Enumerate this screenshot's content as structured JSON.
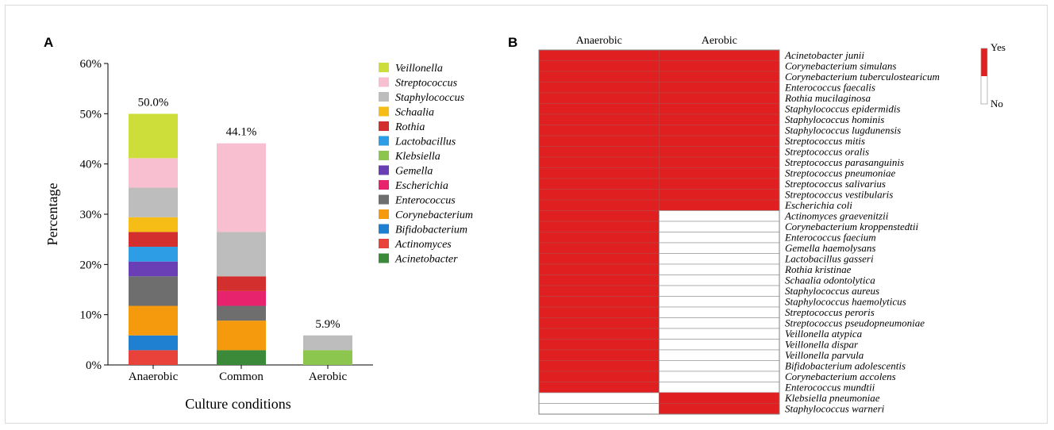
{
  "panel_a_label": "A",
  "panel_b_label": "B",
  "chart_data": [
    {
      "type": "bar",
      "stacked": true,
      "xlabel": "Culture conditions",
      "ylabel": "Percentage",
      "ylim": [
        0,
        60
      ],
      "yticks": [
        "0%",
        "10%",
        "20%",
        "30%",
        "40%",
        "50%",
        "60%"
      ],
      "categories": [
        "Anaerobic",
        "Common",
        "Aerobic"
      ],
      "totals": [
        "50.0%",
        "44.1%",
        "5.9%"
      ],
      "legend_position": "right",
      "series": [
        {
          "name": "Acinetobacter",
          "color": "#3a8a3a",
          "values": [
            0,
            2.94,
            0
          ]
        },
        {
          "name": "Actinomyces",
          "color": "#e8423a",
          "values": [
            2.94,
            0,
            0
          ]
        },
        {
          "name": "Bifidobacterium",
          "color": "#1f7fd0",
          "values": [
            2.94,
            0,
            0
          ]
        },
        {
          "name": "Corynebacterium",
          "color": "#f59a0c",
          "values": [
            5.88,
            5.88,
            0
          ]
        },
        {
          "name": "Enterococcus",
          "color": "#6e6e6e",
          "values": [
            5.88,
            2.94,
            0
          ]
        },
        {
          "name": "Escherichia",
          "color": "#e8236e",
          "values": [
            0,
            2.94,
            0
          ]
        },
        {
          "name": "Gemella",
          "color": "#6a3fb5",
          "values": [
            2.94,
            0,
            0
          ]
        },
        {
          "name": "Klebsiella",
          "color": "#8dc64f",
          "values": [
            0,
            0,
            2.94
          ]
        },
        {
          "name": "Lactobacillus",
          "color": "#2d9ee6",
          "values": [
            2.94,
            0,
            0
          ]
        },
        {
          "name": "Rothia",
          "color": "#d32f2f",
          "values": [
            2.94,
            2.94,
            0
          ]
        },
        {
          "name": "Schaalia",
          "color": "#f6bd16",
          "values": [
            2.94,
            0,
            0
          ]
        },
        {
          "name": "Staphylococcus",
          "color": "#bdbdbd",
          "values": [
            5.88,
            8.82,
            2.94
          ]
        },
        {
          "name": "Streptococcus",
          "color": "#f7bfd0",
          "values": [
            5.88,
            17.65,
            0
          ]
        },
        {
          "name": "Veillonella",
          "color": "#cdde3a",
          "values": [
            8.82,
            0,
            0
          ]
        }
      ]
    },
    {
      "type": "heatmap",
      "columns": [
        "Anaerobic",
        "Aerobic"
      ],
      "legend": {
        "high": "Yes",
        "low": "No",
        "yes_color": "#e02020",
        "no_color": "#ffffff"
      },
      "rows": [
        {
          "name": "Acinetobacter junii",
          "values": [
            1,
            1
          ]
        },
        {
          "name": "Corynebacterium simulans",
          "values": [
            1,
            1
          ]
        },
        {
          "name": "Corynebacterium tuberculostearicum",
          "values": [
            1,
            1
          ]
        },
        {
          "name": "Enterococcus faecalis",
          "values": [
            1,
            1
          ]
        },
        {
          "name": "Rothia mucilaginosa",
          "values": [
            1,
            1
          ]
        },
        {
          "name": "Staphylococcus epidermidis",
          "values": [
            1,
            1
          ]
        },
        {
          "name": "Staphylococcus hominis",
          "values": [
            1,
            1
          ]
        },
        {
          "name": "Staphylococcus lugdunensis",
          "values": [
            1,
            1
          ]
        },
        {
          "name": "Streptococcus mitis",
          "values": [
            1,
            1
          ]
        },
        {
          "name": "Streptococcus oralis",
          "values": [
            1,
            1
          ]
        },
        {
          "name": "Streptococcus parasanguinis",
          "values": [
            1,
            1
          ]
        },
        {
          "name": "Streptococcus pneumoniae",
          "values": [
            1,
            1
          ]
        },
        {
          "name": "Streptococcus salivarius",
          "values": [
            1,
            1
          ]
        },
        {
          "name": "Streptococcus vestibularis",
          "values": [
            1,
            1
          ]
        },
        {
          "name": "Escherichia coli",
          "values": [
            1,
            1
          ]
        },
        {
          "name": "Actinomyces graevenitzii",
          "values": [
            1,
            0
          ]
        },
        {
          "name": "Corynebacterium kroppenstedtii",
          "values": [
            1,
            0
          ]
        },
        {
          "name": "Enterococcus faecium",
          "values": [
            1,
            0
          ]
        },
        {
          "name": "Gemella haemolysans",
          "values": [
            1,
            0
          ]
        },
        {
          "name": "Lactobacillus gasseri",
          "values": [
            1,
            0
          ]
        },
        {
          "name": "Rothia kristinae",
          "values": [
            1,
            0
          ]
        },
        {
          "name": "Schaalia odontolytica",
          "values": [
            1,
            0
          ]
        },
        {
          "name": "Staphylococcus aureus",
          "values": [
            1,
            0
          ]
        },
        {
          "name": "Staphylococcus haemolyticus",
          "values": [
            1,
            0
          ]
        },
        {
          "name": "Streptococcus peroris",
          "values": [
            1,
            0
          ]
        },
        {
          "name": "Streptococcus pseudopneumoniae",
          "values": [
            1,
            0
          ]
        },
        {
          "name": "Veillonella atypica",
          "values": [
            1,
            0
          ]
        },
        {
          "name": "Veillonella dispar",
          "values": [
            1,
            0
          ]
        },
        {
          "name": "Veillonella parvula",
          "values": [
            1,
            0
          ]
        },
        {
          "name": "Bifidobacterium adolescentis",
          "values": [
            1,
            0
          ]
        },
        {
          "name": "Corynebacterium accolens",
          "values": [
            1,
            0
          ]
        },
        {
          "name": "Enterococcus mundtii",
          "values": [
            1,
            0
          ]
        },
        {
          "name": "Klebsiella pneumoniae",
          "values": [
            0,
            1
          ]
        },
        {
          "name": "Staphylococcus warneri",
          "values": [
            0,
            1
          ]
        }
      ]
    }
  ]
}
